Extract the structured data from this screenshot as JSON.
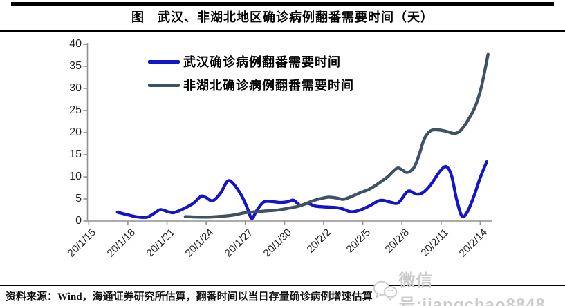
{
  "title": "图　武汉、非湖北地区确诊病例翻番需要时间（天）",
  "footer": {
    "source_text": "资料来源：Wind，海通证券研究所估算，翻番时间以当日存量确诊病例增速估算"
  },
  "watermark": {
    "text": "微信号:jiangchao8848"
  },
  "colors": {
    "wuhan_line": "#1414c8",
    "non_hubei_line": "#3d5264",
    "axis": "#909090",
    "watermark_gray": "#cbcbcb"
  },
  "chart_data": {
    "type": "line",
    "title": "图　武汉、非湖北地区确诊病例翻番需要时间（天）",
    "xlabel": "",
    "ylabel": "",
    "ylim": [
      0,
      40
    ],
    "y_ticks": [
      0,
      5,
      10,
      15,
      20,
      25,
      30,
      35,
      40
    ],
    "x_unit": "days since 20/1/15",
    "x_tick_days": [
      0,
      3,
      6,
      9,
      12,
      15,
      18,
      21,
      24,
      27,
      30
    ],
    "x_tick_labels": [
      "20/1/15",
      "20/1/18",
      "20/1/21",
      "20/1/24",
      "20/1/27",
      "20/1/30",
      "20/2/2",
      "20/2/5",
      "20/2/8",
      "20/2/11",
      "20/2/14"
    ],
    "grid": false,
    "legend_position": "top-left-inside",
    "series": [
      {
        "name": "武汉确诊病例翻番需要时间",
        "color": "#1414c8",
        "points": [
          [
            2.2,
            2.0
          ],
          [
            3.0,
            1.4
          ],
          [
            3.8,
            0.9
          ],
          [
            4.5,
            0.9
          ],
          [
            5.1,
            1.9
          ],
          [
            5.5,
            2.6
          ],
          [
            6.1,
            2.1
          ],
          [
            6.5,
            1.9
          ],
          [
            7.2,
            2.7
          ],
          [
            8.0,
            4.0
          ],
          [
            8.6,
            5.6
          ],
          [
            9.0,
            5.3
          ],
          [
            9.5,
            4.6
          ],
          [
            10.1,
            6.3
          ],
          [
            10.6,
            8.9
          ],
          [
            11.0,
            8.7
          ],
          [
            11.7,
            5.8
          ],
          [
            12.2,
            2.6
          ],
          [
            12.5,
            0.6
          ],
          [
            12.9,
            2.5
          ],
          [
            13.4,
            4.3
          ],
          [
            14.0,
            4.4
          ],
          [
            14.7,
            4.2
          ],
          [
            15.3,
            4.4
          ],
          [
            15.7,
            4.7
          ],
          [
            16.2,
            3.6
          ],
          [
            16.8,
            4.0
          ],
          [
            17.3,
            3.4
          ],
          [
            18.0,
            3.2
          ],
          [
            18.8,
            3.1
          ],
          [
            19.4,
            2.8
          ],
          [
            20.1,
            2.1
          ],
          [
            20.8,
            2.5
          ],
          [
            21.5,
            3.4
          ],
          [
            22.1,
            4.4
          ],
          [
            22.5,
            4.7
          ],
          [
            23.1,
            4.3
          ],
          [
            23.7,
            4.1
          ],
          [
            24.3,
            6.3
          ],
          [
            24.6,
            6.8
          ],
          [
            25.1,
            6.1
          ],
          [
            25.6,
            6.4
          ],
          [
            26.2,
            8.2
          ],
          [
            26.9,
            11.2
          ],
          [
            27.4,
            12.3
          ],
          [
            27.8,
            10.3
          ],
          [
            28.2,
            4.8
          ],
          [
            28.6,
            1.1
          ],
          [
            29.0,
            2.0
          ],
          [
            29.5,
            5.5
          ],
          [
            30.0,
            9.8
          ],
          [
            30.5,
            13.4
          ]
        ]
      },
      {
        "name": "非湖北确诊病例翻番需要时间",
        "color": "#3d5264",
        "points": [
          [
            7.4,
            1.0
          ],
          [
            8.3,
            0.9
          ],
          [
            9.3,
            0.9
          ],
          [
            10.3,
            1.1
          ],
          [
            11.2,
            1.4
          ],
          [
            12.0,
            1.9
          ],
          [
            12.8,
            2.1
          ],
          [
            13.6,
            2.3
          ],
          [
            14.5,
            2.5
          ],
          [
            15.3,
            2.9
          ],
          [
            16.0,
            3.3
          ],
          [
            16.6,
            3.9
          ],
          [
            17.2,
            4.6
          ],
          [
            17.8,
            5.1
          ],
          [
            18.4,
            5.4
          ],
          [
            19.0,
            5.2
          ],
          [
            19.5,
            4.9
          ],
          [
            20.1,
            5.5
          ],
          [
            20.8,
            6.4
          ],
          [
            21.5,
            7.2
          ],
          [
            22.2,
            8.5
          ],
          [
            22.9,
            10.0
          ],
          [
            23.6,
            11.9
          ],
          [
            24.0,
            11.6
          ],
          [
            24.4,
            11.0
          ],
          [
            24.9,
            12.0
          ],
          [
            25.3,
            14.8
          ],
          [
            25.7,
            18.5
          ],
          [
            26.2,
            20.4
          ],
          [
            26.8,
            20.6
          ],
          [
            27.4,
            20.3
          ],
          [
            28.0,
            19.8
          ],
          [
            28.5,
            20.5
          ],
          [
            29.0,
            22.5
          ],
          [
            29.6,
            25.8
          ],
          [
            30.1,
            30.5
          ],
          [
            30.6,
            37.7
          ]
        ]
      }
    ]
  }
}
